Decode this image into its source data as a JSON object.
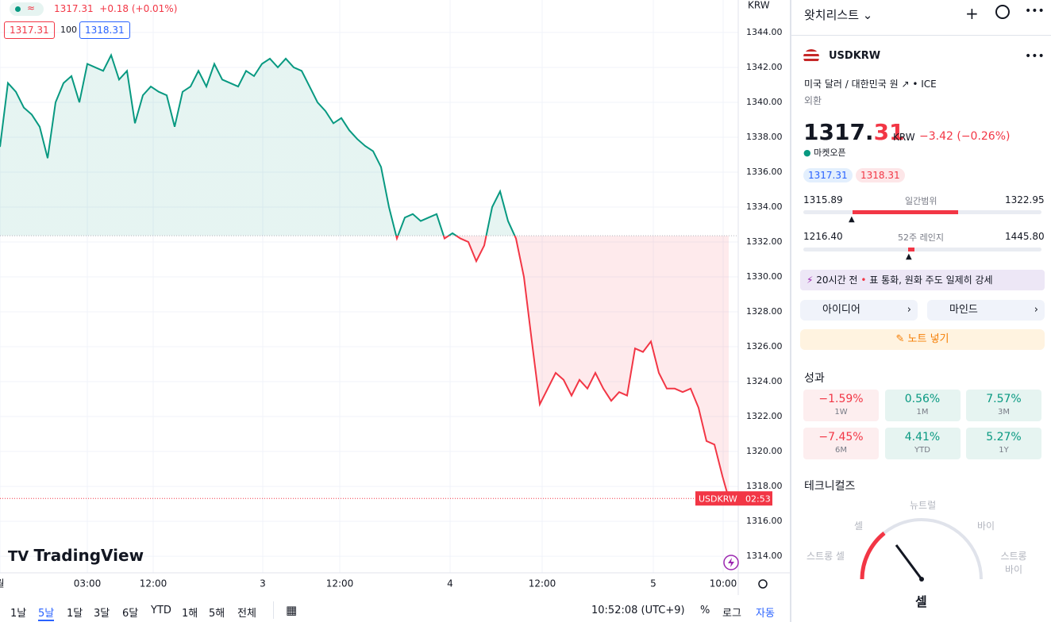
{
  "legend": {
    "price": "1317.31",
    "change": "+0.18 (+0.01%)",
    "bid": "1317.31",
    "spread": "100",
    "ask": "1318.31"
  },
  "logo": "TradingView",
  "chart_data": {
    "type": "line",
    "currency": "KRW",
    "line_colors": {
      "above": "#089981",
      "below": "#f23645"
    },
    "fill_colors": {
      "above": "rgba(8,153,129,0.1)",
      "below": "rgba(242,54,69,0.1)"
    },
    "baseline": 1332.36,
    "grid": true,
    "last_price": 1317.31,
    "last_label": {
      "symbol": "USDKRW",
      "countdown": "02:53"
    },
    "x": [
      0,
      1,
      2,
      3,
      4,
      5,
      6,
      7,
      8,
      9,
      10,
      11,
      12,
      13,
      14,
      15,
      16,
      17,
      18,
      19,
      20,
      21,
      22,
      23,
      24,
      25,
      26,
      27,
      28,
      29,
      30,
      31,
      32,
      33,
      34,
      35,
      36,
      37,
      38,
      39,
      40,
      41,
      42,
      43,
      44,
      45,
      46,
      47,
      48,
      49,
      50,
      51,
      52,
      53,
      54,
      55,
      56,
      57,
      58,
      59,
      60,
      61,
      62,
      63,
      64,
      65,
      66,
      67,
      68,
      69,
      70,
      71,
      72,
      73,
      74,
      75,
      76,
      77,
      78,
      79,
      80,
      81,
      82,
      83,
      84,
      85,
      86,
      87,
      88,
      89,
      90,
      91,
      91.8
    ],
    "values": [
      1337.45,
      1341.1,
      1340.6,
      1339.7,
      1339.3,
      1338.6,
      1336.8,
      1340,
      1341.1,
      1341.5,
      1340,
      1342.2,
      1342,
      1341.8,
      1342.7,
      1341.3,
      1341.8,
      1338.8,
      1340.4,
      1340.9,
      1340.6,
      1340.4,
      1338.6,
      1340.6,
      1340.9,
      1341.8,
      1340.9,
      1342.2,
      1341.3,
      1341.1,
      1340.9,
      1341.8,
      1341.5,
      1342.2,
      1342.5,
      1342,
      1342.5,
      1342,
      1341.8,
      1340.9,
      1340,
      1339.5,
      1338.8,
      1339.1,
      1338.4,
      1337.9,
      1337.5,
      1337.2,
      1336.3,
      1334,
      1332.2,
      1333.4,
      1333.6,
      1333.2,
      1333.4,
      1333.6,
      1332.2,
      1332.5,
      1332.2,
      1332,
      1330.9,
      1331.8,
      1334,
      1334.9,
      1333.2,
      1332.2,
      1330,
      1326.3,
      1322.7,
      1323.6,
      1324.5,
      1324.1,
      1323.2,
      1324.1,
      1323.6,
      1324.5,
      1323.6,
      1322.9,
      1323.4,
      1323.2,
      1325.9,
      1325.7,
      1326.3,
      1324.5,
      1323.6,
      1323.6,
      1323.4,
      1323.6,
      1322.5,
      1320.6,
      1320.4,
      1318.6,
      1317.31
    ],
    "xlim": [
      0,
      93
    ],
    "ylim": [
      1313.05,
      1345.86
    ],
    "xticks": [
      {
        "value": 0,
        "label": "월"
      },
      {
        "value": 11,
        "label": "03:00"
      },
      {
        "value": 19.3,
        "label": "12:00"
      },
      {
        "value": 33.1,
        "label": "3"
      },
      {
        "value": 42.8,
        "label": "12:00"
      },
      {
        "value": 56.7,
        "label": "4"
      },
      {
        "value": 68.3,
        "label": "12:00"
      },
      {
        "value": 82.3,
        "label": "5"
      },
      {
        "value": 91.1,
        "label": "10:00"
      }
    ],
    "yticks": [
      {
        "value": 1314,
        "label": "1314.00"
      },
      {
        "value": 1316,
        "label": "1316.00"
      },
      {
        "value": 1318,
        "label": "1318.00"
      },
      {
        "value": 1320,
        "label": "1320.00"
      },
      {
        "value": 1322,
        "label": "1322.00"
      },
      {
        "value": 1324,
        "label": "1324.00"
      },
      {
        "value": 1326,
        "label": "1326.00"
      },
      {
        "value": 1328,
        "label": "1328.00"
      },
      {
        "value": 1330,
        "label": "1330.00"
      },
      {
        "value": 1332,
        "label": "1332.00"
      },
      {
        "value": 1334,
        "label": "1334.00"
      },
      {
        "value": 1336,
        "label": "1336.00"
      },
      {
        "value": 1338,
        "label": "1338.00"
      },
      {
        "value": 1340,
        "label": "1340.00"
      },
      {
        "value": 1342,
        "label": "1342.00"
      },
      {
        "value": 1344,
        "label": "1344.00"
      }
    ]
  },
  "toolbar": {
    "ranges": [
      "1날",
      "5날",
      "1달",
      "3달",
      "6달",
      "YTD",
      "1해",
      "5해",
      "전체"
    ],
    "time": "10:52:08 (UTC+9)",
    "percent": "%",
    "log": "로그",
    "auto": "자동"
  },
  "watchlist": {
    "title": "왓치리스트",
    "symbol": "USDKRW",
    "description": "미국 달러 / 대한민국 원",
    "exchange": "ICE",
    "category": "외환",
    "price_main": "1317.",
    "price_fraction": "31",
    "currency": "KRW",
    "change": "−3.42 (−0.26%)",
    "status": "마켓오픈",
    "bid": "1317.31",
    "ask": "1318.31",
    "day_range": {
      "low": "1315.89",
      "label": "일간범위",
      "high": "1322.95"
    },
    "year_range": {
      "low": "1216.40",
      "label": "52주 레인지",
      "high": "1445.80"
    },
    "news": {
      "time": "20시간 전",
      "text": "표 통화, 원화 주도 일제히 강세"
    },
    "ideas": "아이디어",
    "minds": "마인드",
    "note": "노트 넣기",
    "performance_title": "성과",
    "performance": [
      {
        "value": "−1.59%",
        "period": "1W"
      },
      {
        "value": "0.56%",
        "period": "1M"
      },
      {
        "value": "7.57%",
        "period": "3M"
      },
      {
        "value": "−7.45%",
        "period": "6M"
      },
      {
        "value": "4.41%",
        "period": "YTD"
      },
      {
        "value": "5.27%",
        "period": "1Y"
      }
    ],
    "technicals_title": "테크니컬즈",
    "gauge": {
      "strong_sell": "스트롱 셀",
      "sell": "셀",
      "neutral": "뉴트럴",
      "buy": "바이",
      "strong_buy": "스트롱 바이",
      "verdict": "셀"
    }
  }
}
